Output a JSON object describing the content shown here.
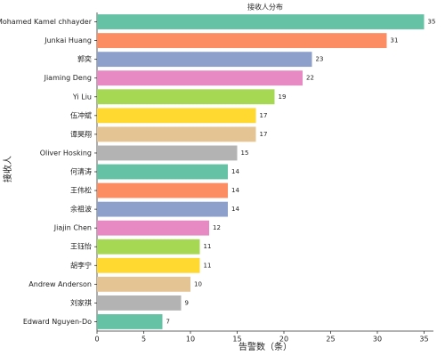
{
  "chart_data": {
    "type": "barh",
    "title": "接收人分布",
    "xlabel": "告警数（条）",
    "ylabel": "接收人",
    "categories": [
      "Mohamed Kamel chhayder",
      "Junkai Huang",
      "郭奕",
      "Jiaming Deng",
      "Yi Liu",
      "伍冲斌",
      "谭昊翔",
      "Oliver Hosking",
      "何清涛",
      "王伟松",
      "余祖波",
      "Jiajin Chen",
      "王钰怡",
      "胡李宁",
      "Andrew Anderson",
      "刘家祺",
      "Edward Nguyen-Do"
    ],
    "values": [
      35,
      31,
      23,
      22,
      19,
      17,
      17,
      15,
      14,
      14,
      14,
      12,
      11,
      11,
      10,
      9,
      7
    ],
    "colors": [
      "#66c2a5",
      "#fc8d62",
      "#8da0cb",
      "#e78ac3",
      "#a6d854",
      "#ffd92f",
      "#e5c494",
      "#b3b3b3",
      "#66c2a5",
      "#fc8d62",
      "#8da0cb",
      "#e78ac3",
      "#a6d854",
      "#ffd92f",
      "#e5c494",
      "#b3b3b3",
      "#66c2a5"
    ],
    "xlim": [
      0,
      36
    ],
    "xticks": [
      0,
      5,
      10,
      15,
      20,
      25,
      30,
      35
    ]
  }
}
